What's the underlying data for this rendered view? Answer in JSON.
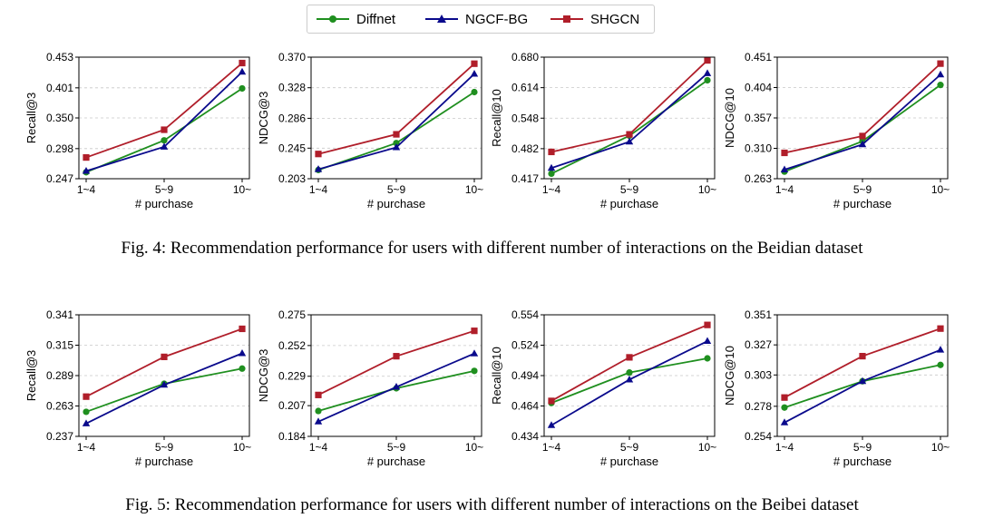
{
  "legend": {
    "items": [
      {
        "name": "Diffnet",
        "color": "#1f8f1f",
        "marker": "circle"
      },
      {
        "name": "NGCF-BG",
        "color": "#0a0a8c",
        "marker": "triangle"
      },
      {
        "name": "SHGCN",
        "color": "#b01e2a",
        "marker": "square"
      }
    ]
  },
  "captions": {
    "fig4": "Fig. 4: Recommendation performance for users with different number of interactions on the Beidian dataset",
    "fig5": "Fig. 5: Recommendation performance for users with different number of interactions on the Beibei dataset"
  },
  "chart_data": [
    {
      "type": "line",
      "xlabel": "# purchase",
      "ylabel": "Recall@3",
      "categories": [
        "1~4",
        "5~9",
        "10~"
      ],
      "yticks": [
        "0.247",
        "0.298",
        "0.350",
        "0.401",
        "0.453"
      ],
      "ylim": [
        0.247,
        0.453
      ],
      "grid": true,
      "series": [
        {
          "name": "Diffnet",
          "values": [
            0.258,
            0.312,
            0.4
          ]
        },
        {
          "name": "NGCF-BG",
          "values": [
            0.26,
            0.301,
            0.428
          ]
        },
        {
          "name": "SHGCN",
          "values": [
            0.283,
            0.33,
            0.443
          ]
        }
      ]
    },
    {
      "type": "line",
      "xlabel": "# purchase",
      "ylabel": "NDCG@3",
      "categories": [
        "1~4",
        "5~9",
        "10~"
      ],
      "yticks": [
        "0.203",
        "0.245",
        "0.286",
        "0.328",
        "0.370"
      ],
      "ylim": [
        0.203,
        0.37
      ],
      "grid": true,
      "series": [
        {
          "name": "Diffnet",
          "values": [
            0.215,
            0.252,
            0.322
          ]
        },
        {
          "name": "NGCF-BG",
          "values": [
            0.216,
            0.246,
            0.347
          ]
        },
        {
          "name": "SHGCN",
          "values": [
            0.237,
            0.264,
            0.361
          ]
        }
      ]
    },
    {
      "type": "line",
      "xlabel": "# purchase",
      "ylabel": "Recall@10",
      "categories": [
        "1~4",
        "5~9",
        "10~"
      ],
      "yticks": [
        "0.417",
        "0.482",
        "0.548",
        "0.614",
        "0.680"
      ],
      "ylim": [
        0.417,
        0.68
      ],
      "grid": true,
      "series": [
        {
          "name": "Diffnet",
          "values": [
            0.428,
            0.51,
            0.63
          ]
        },
        {
          "name": "NGCF-BG",
          "values": [
            0.44,
            0.497,
            0.645
          ]
        },
        {
          "name": "SHGCN",
          "values": [
            0.475,
            0.513,
            0.673
          ]
        }
      ]
    },
    {
      "type": "line",
      "xlabel": "# purchase",
      "ylabel": "NDCG@10",
      "categories": [
        "1~4",
        "5~9",
        "10~"
      ],
      "yticks": [
        "0.263",
        "0.310",
        "0.357",
        "0.404",
        "0.451"
      ],
      "ylim": [
        0.263,
        0.451
      ],
      "grid": true,
      "series": [
        {
          "name": "Diffnet",
          "values": [
            0.274,
            0.321,
            0.408
          ]
        },
        {
          "name": "NGCF-BG",
          "values": [
            0.277,
            0.316,
            0.424
          ]
        },
        {
          "name": "SHGCN",
          "values": [
            0.303,
            0.329,
            0.441
          ]
        }
      ]
    },
    {
      "type": "line",
      "xlabel": "# purchase",
      "ylabel": "Recall@3",
      "categories": [
        "1~4",
        "5~9",
        "10~"
      ],
      "yticks": [
        "0.237",
        "0.263",
        "0.289",
        "0.315",
        "0.341"
      ],
      "ylim": [
        0.237,
        0.341
      ],
      "grid": true,
      "series": [
        {
          "name": "Diffnet",
          "values": [
            0.258,
            0.282,
            0.295
          ]
        },
        {
          "name": "NGCF-BG",
          "values": [
            0.248,
            0.281,
            0.308
          ]
        },
        {
          "name": "SHGCN",
          "values": [
            0.271,
            0.305,
            0.329
          ]
        }
      ]
    },
    {
      "type": "line",
      "xlabel": "# purchase",
      "ylabel": "NDCG@3",
      "categories": [
        "1~4",
        "5~9",
        "10~"
      ],
      "yticks": [
        "0.184",
        "0.207",
        "0.229",
        "0.252",
        "0.275"
      ],
      "ylim": [
        0.184,
        0.275
      ],
      "grid": true,
      "series": [
        {
          "name": "Diffnet",
          "values": [
            0.203,
            0.22,
            0.233
          ]
        },
        {
          "name": "NGCF-BG",
          "values": [
            0.195,
            0.221,
            0.246
          ]
        },
        {
          "name": "SHGCN",
          "values": [
            0.215,
            0.244,
            0.263
          ]
        }
      ]
    },
    {
      "type": "line",
      "xlabel": "# purchase",
      "ylabel": "Recall@10",
      "categories": [
        "1~4",
        "5~9",
        "10~"
      ],
      "yticks": [
        "0.434",
        "0.464",
        "0.494",
        "0.524",
        "0.554"
      ],
      "ylim": [
        0.434,
        0.554
      ],
      "grid": true,
      "series": [
        {
          "name": "Diffnet",
          "values": [
            0.467,
            0.497,
            0.511
          ]
        },
        {
          "name": "NGCF-BG",
          "values": [
            0.445,
            0.49,
            0.528
          ]
        },
        {
          "name": "SHGCN",
          "values": [
            0.469,
            0.512,
            0.544
          ]
        }
      ]
    },
    {
      "type": "line",
      "xlabel": "# purchase",
      "ylabel": "NDCG@10",
      "categories": [
        "1~4",
        "5~9",
        "10~"
      ],
      "yticks": [
        "0.254",
        "0.278",
        "0.303",
        "0.327",
        "0.351"
      ],
      "ylim": [
        0.254,
        0.351
      ],
      "grid": true,
      "series": [
        {
          "name": "Diffnet",
          "values": [
            0.277,
            0.298,
            0.311
          ]
        },
        {
          "name": "NGCF-BG",
          "values": [
            0.265,
            0.298,
            0.323
          ]
        },
        {
          "name": "SHGCN",
          "values": [
            0.285,
            0.318,
            0.34
          ]
        }
      ]
    }
  ]
}
